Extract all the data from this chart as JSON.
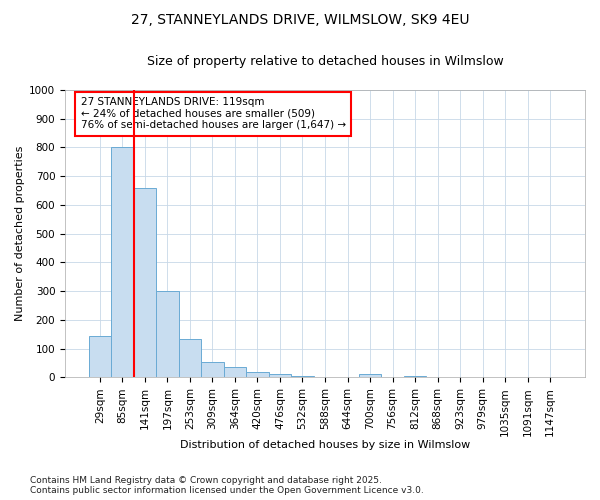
{
  "title_line1": "27, STANNEYLANDS DRIVE, WILMSLOW, SK9 4EU",
  "title_line2": "Size of property relative to detached houses in Wilmslow",
  "xlabel": "Distribution of detached houses by size in Wilmslow",
  "ylabel": "Number of detached properties",
  "footer_line1": "Contains HM Land Registry data © Crown copyright and database right 2025.",
  "footer_line2": "Contains public sector information licensed under the Open Government Licence v3.0.",
  "bin_labels": [
    "29sqm",
    "85sqm",
    "141sqm",
    "197sqm",
    "253sqm",
    "309sqm",
    "364sqm",
    "420sqm",
    "476sqm",
    "532sqm",
    "588sqm",
    "644sqm",
    "700sqm",
    "756sqm",
    "812sqm",
    "868sqm",
    "923sqm",
    "979sqm",
    "1035sqm",
    "1091sqm",
    "1147sqm"
  ],
  "bar_values": [
    145,
    800,
    660,
    300,
    135,
    55,
    35,
    20,
    10,
    5,
    0,
    0,
    10,
    0,
    5,
    0,
    0,
    0,
    0,
    0,
    0
  ],
  "bar_color": "#c8ddf0",
  "bar_edge_color": "#6aaad4",
  "vline_color": "red",
  "vline_pos": 1.5,
  "annotation_text": "27 STANNEYLANDS DRIVE: 119sqm\n← 24% of detached houses are smaller (509)\n76% of semi-detached houses are larger (1,647) →",
  "annotation_box_facecolor": "white",
  "annotation_box_edgecolor": "red",
  "ylim": [
    0,
    1000
  ],
  "yticks": [
    0,
    100,
    200,
    300,
    400,
    500,
    600,
    700,
    800,
    900,
    1000
  ],
  "bg_color": "#ffffff",
  "plot_bg_color": "#ffffff",
  "grid_color": "#c8d8e8",
  "title_fontsize": 10,
  "subtitle_fontsize": 9,
  "axis_label_fontsize": 8,
  "tick_fontsize": 7.5,
  "annotation_fontsize": 7.5,
  "footer_fontsize": 6.5
}
